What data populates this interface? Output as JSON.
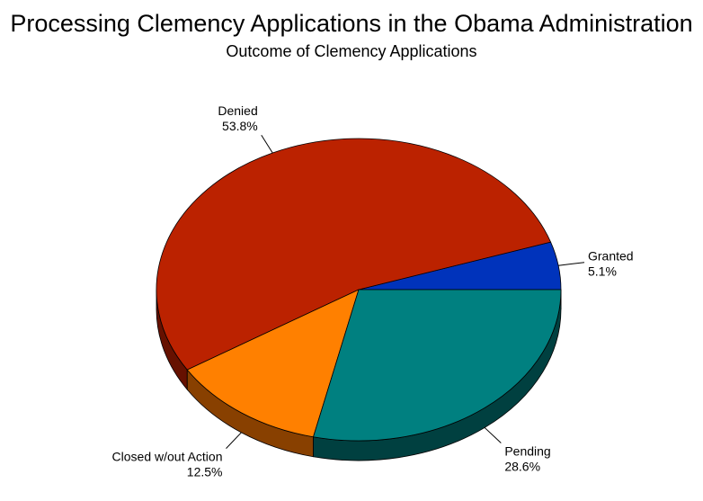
{
  "chart_data": {
    "type": "pie",
    "title": "Processing Clemency Applications in the Obama Administration",
    "subtitle": "Outcome of Clemency Applications",
    "slices": [
      {
        "label": "Granted",
        "value": 5.1,
        "value_label": "5.1%",
        "color": "#0033bb",
        "side_color": "#001a66"
      },
      {
        "label": "Denied",
        "value": 53.8,
        "value_label": "53.8%",
        "color": "#bb2200",
        "side_color": "#661100"
      },
      {
        "label": "Closed w/out Action",
        "value": 12.5,
        "value_label": "12.5%",
        "color": "#ff8000",
        "side_color": "#884000"
      },
      {
        "label": "Pending",
        "value": 28.6,
        "value_label": "28.6%",
        "color": "#008080",
        "side_color": "#004040"
      }
    ]
  }
}
